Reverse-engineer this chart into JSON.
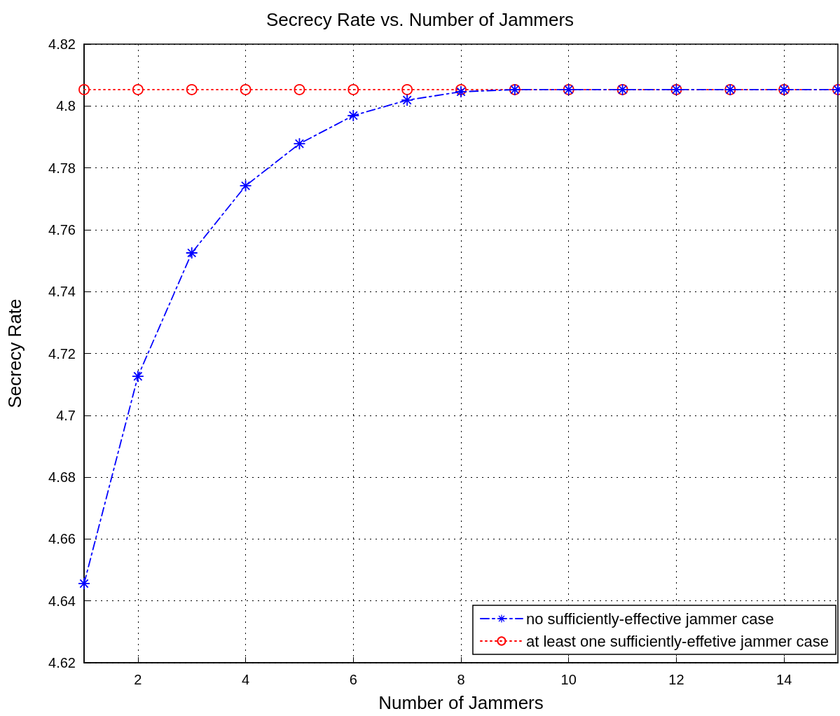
{
  "chart_data": {
    "type": "line",
    "title": "Secrecy Rate vs. Number of Jammers",
    "xlabel": "Number of Jammers",
    "ylabel": "Secrecy Rate",
    "x": [
      1,
      2,
      3,
      4,
      5,
      6,
      7,
      8,
      9,
      10,
      11,
      12,
      13,
      14,
      15
    ],
    "series": [
      {
        "name": "no sufficiently-effective jammer case",
        "color": "#0000ff",
        "marker": "star",
        "line_style": "dashed",
        "values": [
          4.6456,
          4.7126,
          4.7525,
          4.7742,
          4.7878,
          4.7969,
          4.8019,
          4.8046,
          4.8053,
          4.8053,
          4.8053,
          4.8053,
          4.8053,
          4.8053,
          4.8053
        ]
      },
      {
        "name": "at least one sufficiently-effetive jammer case",
        "color": "#ff0000",
        "marker": "circle",
        "line_style": "dotted",
        "values": [
          4.8053,
          4.8053,
          4.8053,
          4.8053,
          4.8053,
          4.8053,
          4.8053,
          4.8053,
          4.8053,
          4.8053,
          4.8053,
          4.8053,
          4.8053,
          4.8053,
          4.8053
        ]
      }
    ],
    "xlim": [
      1,
      15
    ],
    "xticks": [
      2,
      4,
      6,
      8,
      10,
      12,
      14
    ],
    "ylim": [
      4.62,
      4.82
    ],
    "yticks": [
      4.62,
      4.64,
      4.66,
      4.68,
      4.7,
      4.72,
      4.74,
      4.76,
      4.78,
      4.8,
      4.82
    ],
    "grid": true,
    "legend": "bottom right"
  }
}
